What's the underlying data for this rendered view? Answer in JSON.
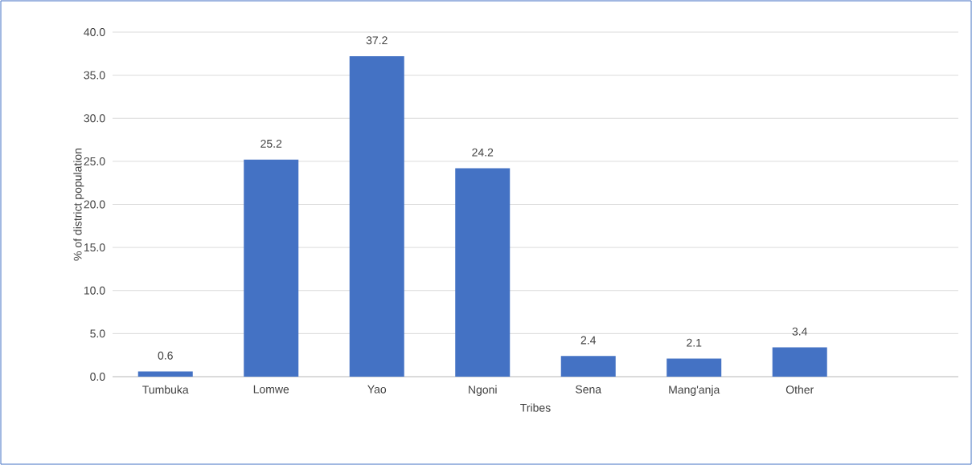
{
  "chart_data": {
    "type": "bar",
    "xlabel": "Tribes",
    "ylabel": "% of district population",
    "categories": [
      "Tumbuka",
      "Lomwe",
      "Yao",
      "Ngoni",
      "Sena",
      "Mang'anja",
      "Other",
      null
    ],
    "values": [
      0.6,
      25.2,
      37.2,
      24.2,
      2.4,
      2.1,
      3.4,
      null
    ],
    "value_labels": [
      "0.6",
      "25.2",
      "37.2",
      "24.2",
      "2.4",
      "2.1",
      "3.4",
      null
    ],
    "color": "#4472c4",
    "ylim": [
      0,
      40
    ],
    "yticks": [
      {
        "value": 0,
        "label": "0.0"
      },
      {
        "value": 5,
        "label": "5.0"
      },
      {
        "value": 10,
        "label": "10.0"
      },
      {
        "value": 15,
        "label": "15.0"
      },
      {
        "value": 20,
        "label": "20.0"
      },
      {
        "value": 25,
        "label": "25.0"
      },
      {
        "value": 30,
        "label": "30.0"
      },
      {
        "value": 35,
        "label": "35.0"
      },
      {
        "value": 40,
        "label": "40.0"
      }
    ],
    "grid": "y"
  }
}
